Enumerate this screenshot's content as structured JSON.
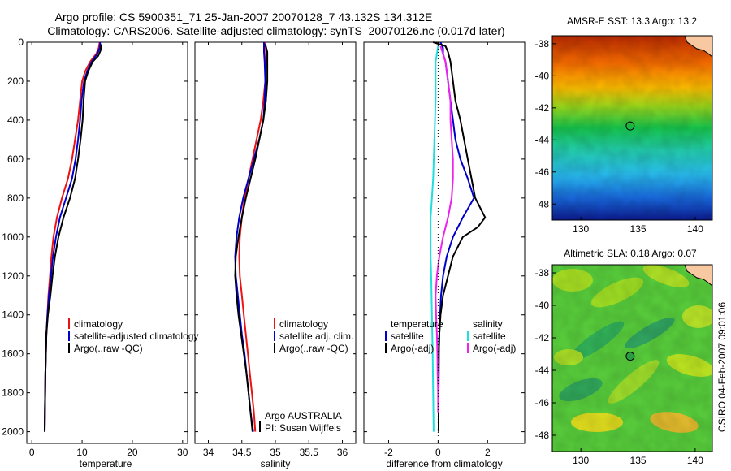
{
  "header": {
    "title_line1": "Argo profile: CS 5900351_71 25-Jan-2007 20070128_7 43.132S 134.312E",
    "title_line2": "Climatology: CARS2006. Satellite-adjusted climatology: synTS_20070126.nc (0.017d later)"
  },
  "side_label": "CSIRO 04-Feb-2007 09:01:06",
  "colors": {
    "climatology": "#ee1111",
    "satellite": "#0000cc",
    "argo": "#000000",
    "sal_satellite": "#22dddd",
    "sal_argo": "#ee22ee"
  },
  "chart_data": [
    {
      "type": "line",
      "xlabel": "temperature",
      "xlim": [
        -1,
        31
      ],
      "xticks": [
        0,
        10,
        20,
        30
      ],
      "ylim": [
        2060,
        0
      ],
      "yticks": [
        0,
        200,
        400,
        600,
        800,
        1000,
        1200,
        1400,
        1600,
        1800,
        2000
      ],
      "legend": [
        "climatology",
        "satellite-adjusted climatology",
        "Argo(..raw -QC)"
      ],
      "series": [
        {
          "name": "climatology",
          "color_key": "climatology",
          "points": [
            [
              13.5,
              0
            ],
            [
              13.3,
              30
            ],
            [
              12.8,
              60
            ],
            [
              11.6,
              100
            ],
            [
              10.6,
              150
            ],
            [
              10.0,
              200
            ],
            [
              9.6,
              300
            ],
            [
              9.2,
              400
            ],
            [
              8.6,
              500
            ],
            [
              8.0,
              600
            ],
            [
              7.2,
              700
            ],
            [
              6.0,
              800
            ],
            [
              5.0,
              900
            ],
            [
              4.3,
              1000
            ],
            [
              3.9,
              1100
            ],
            [
              3.6,
              1200
            ],
            [
              3.3,
              1300
            ],
            [
              3.1,
              1400
            ],
            [
              2.9,
              1500
            ],
            [
              2.8,
              1600
            ],
            [
              2.7,
              1700
            ],
            [
              2.65,
              1800
            ],
            [
              2.6,
              1900
            ],
            [
              2.55,
              2000
            ]
          ]
        },
        {
          "name": "satellite-adjusted climatology",
          "color_key": "satellite",
          "points": [
            [
              13.6,
              0
            ],
            [
              13.5,
              30
            ],
            [
              13.0,
              60
            ],
            [
              11.9,
              100
            ],
            [
              11.0,
              150
            ],
            [
              10.4,
              200
            ],
            [
              9.9,
              300
            ],
            [
              9.6,
              400
            ],
            [
              9.2,
              500
            ],
            [
              8.7,
              600
            ],
            [
              8.0,
              700
            ],
            [
              6.8,
              800
            ],
            [
              5.6,
              900
            ],
            [
              4.8,
              1000
            ],
            [
              4.2,
              1100
            ],
            [
              3.8,
              1200
            ],
            [
              3.4,
              1300
            ],
            [
              3.1,
              1400
            ],
            [
              2.9,
              1500
            ],
            [
              2.8,
              1600
            ],
            [
              2.7,
              1700
            ],
            [
              2.65,
              1800
            ],
            [
              2.6,
              1900
            ],
            [
              2.55,
              2000
            ]
          ]
        },
        {
          "name": "Argo(..raw -QC)",
          "color_key": "argo",
          "points": [
            [
              13.8,
              10
            ],
            [
              13.7,
              40
            ],
            [
              13.2,
              70
            ],
            [
              12.1,
              100
            ],
            [
              11.2,
              150
            ],
            [
              10.6,
              200
            ],
            [
              10.3,
              300
            ],
            [
              10.1,
              400
            ],
            [
              9.7,
              500
            ],
            [
              9.2,
              600
            ],
            [
              8.6,
              700
            ],
            [
              7.6,
              800
            ],
            [
              6.3,
              900
            ],
            [
              5.3,
              1000
            ],
            [
              4.6,
              1100
            ],
            [
              4.1,
              1200
            ],
            [
              3.7,
              1300
            ],
            [
              3.2,
              1400
            ],
            [
              2.9,
              1500
            ],
            [
              2.8,
              1600
            ],
            [
              2.7,
              1700
            ],
            [
              2.65,
              1800
            ],
            [
              2.6,
              1900
            ],
            [
              2.55,
              2000
            ]
          ]
        }
      ]
    },
    {
      "type": "line",
      "xlabel": "salinity",
      "xlim": [
        33.8,
        36.2
      ],
      "xticks": [
        34,
        34.5,
        35,
        35.5,
        36
      ],
      "ylim": [
        2060,
        0
      ],
      "legend": [
        "climatology",
        "satellite adj. clim.",
        "Argo(..raw -QC)"
      ],
      "annotation": [
        "Argo AUSTRALIA",
        "PI: Susan Wijffels"
      ],
      "series": [
        {
          "name": "climatology",
          "color_key": "climatology",
          "points": [
            [
              34.85,
              0
            ],
            [
              34.86,
              50
            ],
            [
              34.86,
              100
            ],
            [
              34.85,
              200
            ],
            [
              34.82,
              300
            ],
            [
              34.78,
              400
            ],
            [
              34.72,
              500
            ],
            [
              34.66,
              600
            ],
            [
              34.6,
              700
            ],
            [
              34.54,
              800
            ],
            [
              34.5,
              900
            ],
            [
              34.47,
              1000
            ],
            [
              34.46,
              1100
            ],
            [
              34.47,
              1200
            ],
            [
              34.5,
              1300
            ],
            [
              34.53,
              1400
            ],
            [
              34.56,
              1500
            ],
            [
              34.59,
              1600
            ],
            [
              34.62,
              1700
            ],
            [
              34.65,
              1800
            ],
            [
              34.68,
              1900
            ],
            [
              34.7,
              2000
            ]
          ]
        },
        {
          "name": "satellite adj. clim.",
          "color_key": "satellite",
          "points": [
            [
              34.83,
              0
            ],
            [
              34.83,
              50
            ],
            [
              34.84,
              100
            ],
            [
              34.85,
              200
            ],
            [
              34.84,
              300
            ],
            [
              34.82,
              400
            ],
            [
              34.76,
              500
            ],
            [
              34.68,
              600
            ],
            [
              34.6,
              700
            ],
            [
              34.52,
              800
            ],
            [
              34.46,
              900
            ],
            [
              34.42,
              1000
            ],
            [
              34.4,
              1100
            ],
            [
              34.41,
              1200
            ],
            [
              34.44,
              1300
            ],
            [
              34.47,
              1400
            ],
            [
              34.5,
              1500
            ],
            [
              34.54,
              1600
            ],
            [
              34.57,
              1700
            ],
            [
              34.6,
              1800
            ],
            [
              34.63,
              1900
            ],
            [
              34.67,
              2000
            ]
          ]
        },
        {
          "name": "Argo(..raw -QC)",
          "color_key": "argo",
          "points": [
            [
              34.85,
              10
            ],
            [
              34.88,
              50
            ],
            [
              34.88,
              100
            ],
            [
              34.88,
              200
            ],
            [
              34.86,
              300
            ],
            [
              34.82,
              400
            ],
            [
              34.76,
              500
            ],
            [
              34.7,
              600
            ],
            [
              34.63,
              700
            ],
            [
              34.56,
              800
            ],
            [
              34.5,
              900
            ],
            [
              34.45,
              1000
            ],
            [
              34.41,
              1100
            ],
            [
              34.4,
              1200
            ],
            [
              34.42,
              1300
            ],
            [
              34.45,
              1400
            ],
            [
              34.49,
              1500
            ],
            [
              34.53,
              1600
            ],
            [
              34.57,
              1700
            ],
            [
              34.6,
              1800
            ],
            [
              34.63,
              1900
            ],
            [
              34.66,
              2000
            ]
          ]
        }
      ]
    },
    {
      "type": "line",
      "xlabel": "difference from climatology",
      "xlim": [
        -3,
        3.5
      ],
      "xticks": [
        -2,
        0,
        2
      ],
      "ylim": [
        2060,
        0
      ],
      "legend_left_title": "temperature",
      "legend_left": [
        "satellite",
        "Argo(-adj)"
      ],
      "legend_right_title": "salinity",
      "legend_right": [
        "satellite",
        "Argo(-adj)"
      ],
      "series": [
        {
          "name": "temperature satellite",
          "color_key": "satellite",
          "points": [
            [
              0.1,
              0
            ],
            [
              0.2,
              30
            ],
            [
              0.2,
              60
            ],
            [
              0.3,
              100
            ],
            [
              0.4,
              200
            ],
            [
              0.5,
              300
            ],
            [
              0.6,
              400
            ],
            [
              0.7,
              500
            ],
            [
              0.9,
              600
            ],
            [
              1.2,
              700
            ],
            [
              1.45,
              800
            ],
            [
              1.0,
              900
            ],
            [
              0.6,
              1000
            ],
            [
              0.35,
              1100
            ],
            [
              0.2,
              1200
            ],
            [
              0.12,
              1300
            ],
            [
              0.08,
              1400
            ],
            [
              0.05,
              1500
            ],
            [
              0.03,
              1600
            ],
            [
              0.02,
              1800
            ],
            [
              0.02,
              2000
            ]
          ]
        },
        {
          "name": "temperature Argo(-adj)",
          "color_key": "argo",
          "points": [
            [
              -0.2,
              0
            ],
            [
              0.3,
              20
            ],
            [
              0.4,
              50
            ],
            [
              0.5,
              100
            ],
            [
              0.6,
              200
            ],
            [
              0.7,
              300
            ],
            [
              0.9,
              400
            ],
            [
              1.2,
              600
            ],
            [
              1.5,
              800
            ],
            [
              1.9,
              900
            ],
            [
              1.6,
              950
            ],
            [
              1.0,
              1000
            ],
            [
              0.6,
              1100
            ],
            [
              0.4,
              1200
            ],
            [
              0.2,
              1300
            ],
            [
              0.1,
              1400
            ],
            [
              0.05,
              1500
            ],
            [
              0.03,
              1600
            ],
            [
              0.02,
              1800
            ],
            [
              0.02,
              2000
            ]
          ]
        },
        {
          "name": "salinity satellite",
          "color_key": "sal_satellite",
          "points": [
            [
              0.0,
              20
            ],
            [
              -0.1,
              100
            ],
            [
              -0.1,
              200
            ],
            [
              -0.1,
              300
            ],
            [
              -0.15,
              500
            ],
            [
              -0.2,
              700
            ],
            [
              -0.25,
              800
            ],
            [
              -0.3,
              900
            ],
            [
              -0.3,
              1000
            ],
            [
              -0.3,
              1100
            ],
            [
              -0.28,
              1200
            ],
            [
              -0.25,
              1400
            ],
            [
              -0.22,
              1600
            ],
            [
              -0.2,
              1800
            ],
            [
              -0.18,
              2000
            ]
          ]
        },
        {
          "name": "salinity Argo(-adj)",
          "color_key": "sal_argo",
          "points": [
            [
              0.1,
              20
            ],
            [
              0.3,
              100
            ],
            [
              0.4,
              200
            ],
            [
              0.5,
              300
            ],
            [
              0.5,
              400
            ],
            [
              0.55,
              500
            ],
            [
              0.6,
              600
            ],
            [
              0.6,
              700
            ],
            [
              0.55,
              800
            ],
            [
              0.4,
              900
            ],
            [
              0.2,
              1000
            ],
            [
              0.05,
              1100
            ],
            [
              -0.05,
              1200
            ],
            [
              -0.1,
              1300
            ],
            [
              -0.08,
              1400
            ],
            [
              -0.05,
              1500
            ],
            [
              -0.03,
              1600
            ],
            [
              -0.02,
              1700
            ],
            [
              0.0,
              1800
            ],
            [
              0.0,
              1900
            ]
          ]
        }
      ]
    },
    {
      "type": "heatmap",
      "title": "AMSR-E SST: 13.3 Argo: 13.2",
      "xlim": [
        127.5,
        141.5
      ],
      "ylim": [
        -49,
        -37.5
      ],
      "xticks": [
        130,
        135,
        140
      ],
      "yticks": [
        -38,
        -40,
        -42,
        -44,
        -46,
        -48
      ],
      "marker": [
        134.312,
        -43.132
      ]
    },
    {
      "type": "heatmap",
      "title": "Altimetric SLA: 0.18 Argo: 0.07",
      "xlim": [
        127.5,
        141.5
      ],
      "ylim": [
        -49,
        -37.5
      ],
      "xticks": [
        130,
        135,
        140
      ],
      "yticks": [
        -38,
        -40,
        -42,
        -44,
        -46,
        -48
      ],
      "marker": [
        134.312,
        -43.132
      ]
    }
  ]
}
